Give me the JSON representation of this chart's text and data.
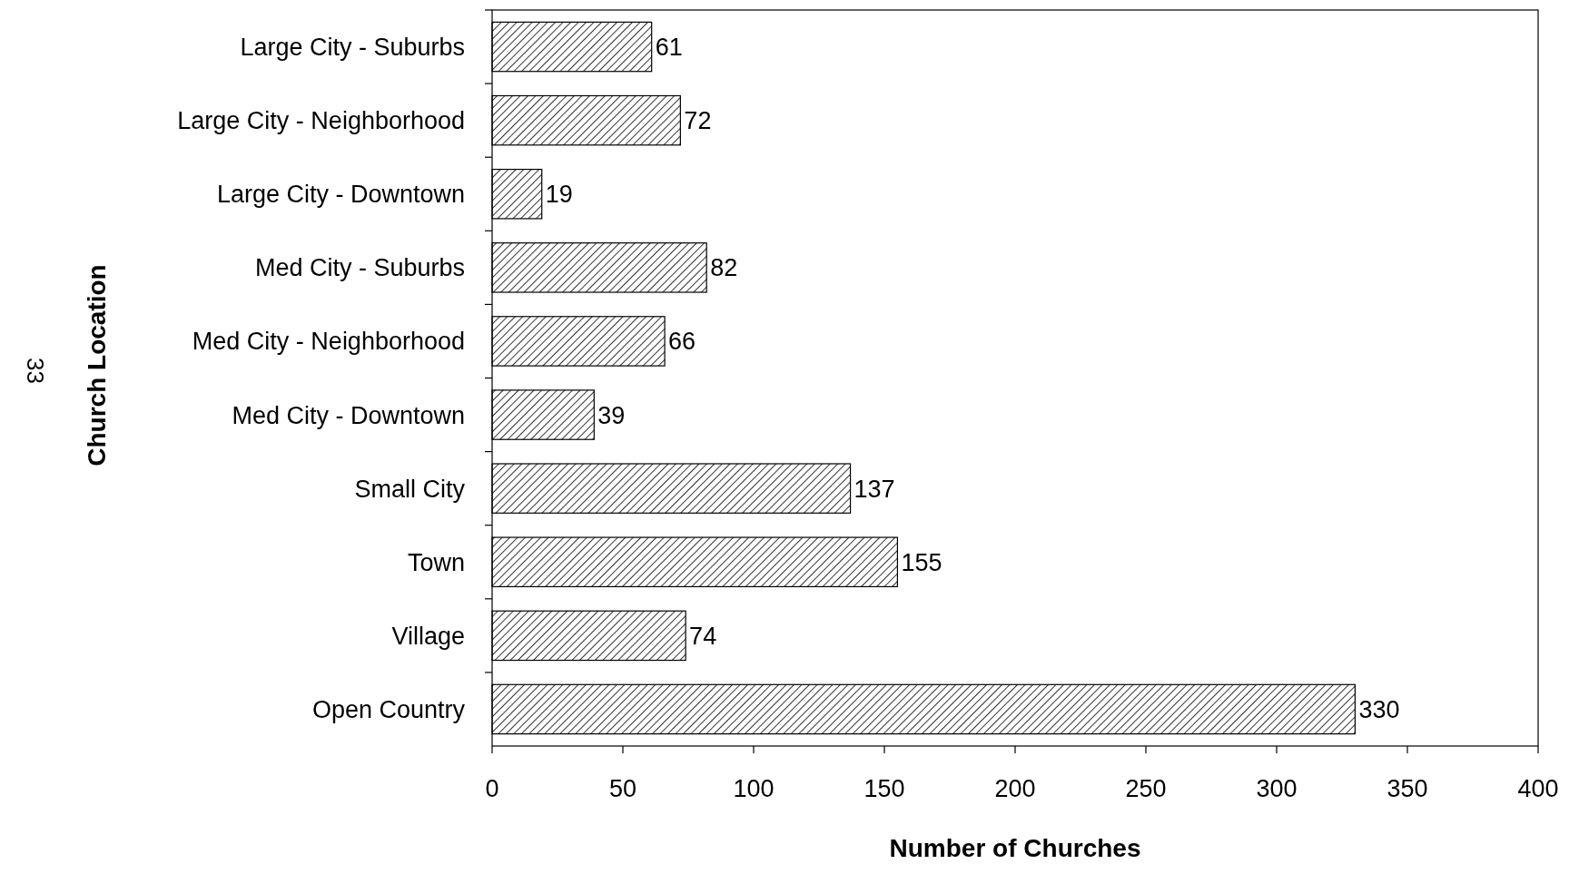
{
  "chart_data": {
    "type": "bar",
    "orientation": "horizontal",
    "xlabel": "Number of Churches",
    "ylabel": "Church Location",
    "categories": [
      "Large City - Suburbs",
      "Large City - Neighborhood",
      "Large City - Downtown",
      "Med City - Suburbs",
      "Med City - Neighborhood",
      "Med City - Downtown",
      "Small City",
      "Town",
      "Village",
      "Open Country"
    ],
    "values": [
      61,
      72,
      19,
      82,
      66,
      39,
      137,
      155,
      74,
      330
    ],
    "color": "#000000",
    "xlim": [
      0,
      400
    ],
    "xticks": [
      0,
      50,
      100,
      150,
      200,
      250,
      300,
      350,
      400
    ],
    "data_labels": true,
    "grid": false,
    "annotations": [
      "33"
    ]
  }
}
